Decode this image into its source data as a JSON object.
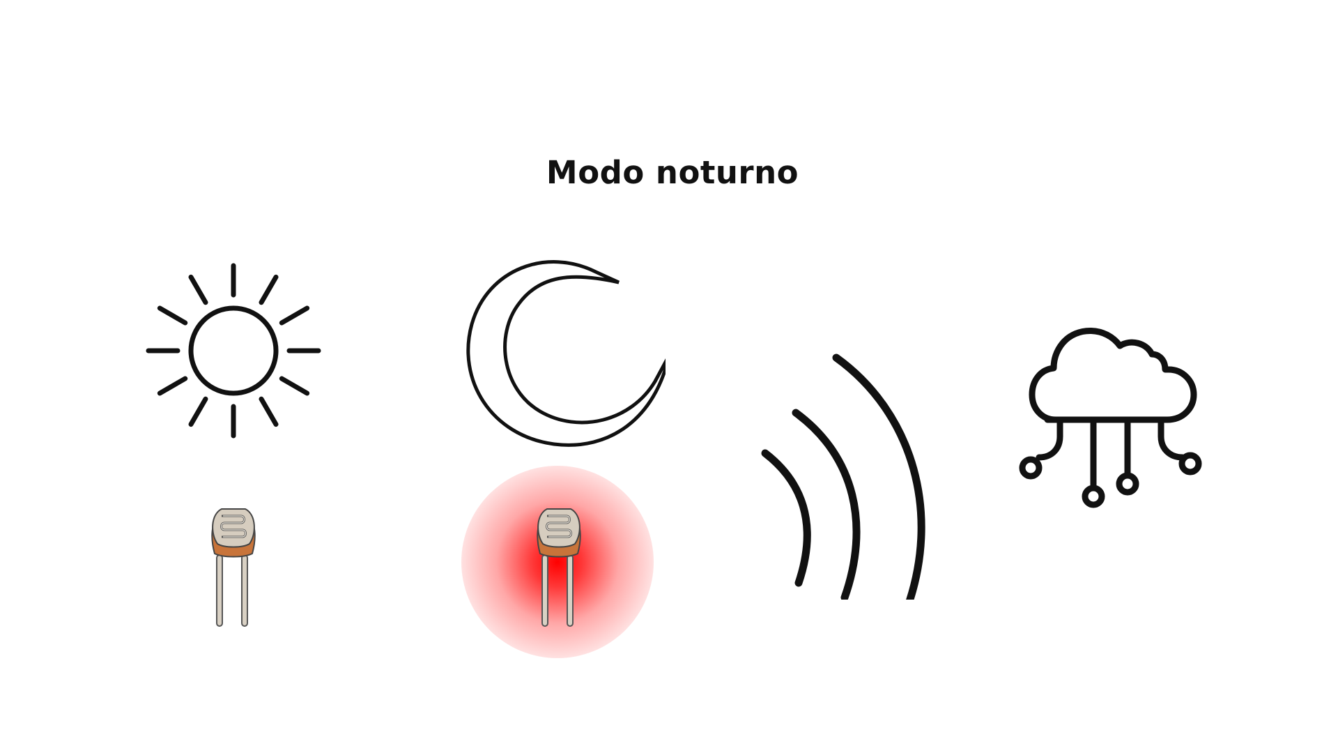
{
  "diagram": {
    "title": "Modo noturno",
    "elements": [
      {
        "name": "sun-icon",
        "meaning": "day"
      },
      {
        "name": "moon-icon",
        "meaning": "night"
      },
      {
        "name": "ldr-sensor-off-icon"
      },
      {
        "name": "ldr-sensor-on-icon",
        "state": "active"
      },
      {
        "name": "wireless-signal-icon"
      },
      {
        "name": "cloud-network-icon"
      }
    ]
  },
  "colors": {
    "stroke": "#111111",
    "glow": "#ff0000",
    "sensor_head": "#d6cdbf",
    "sensor_base": "#c8743a",
    "sensor_leg": "#d9d1c4"
  }
}
